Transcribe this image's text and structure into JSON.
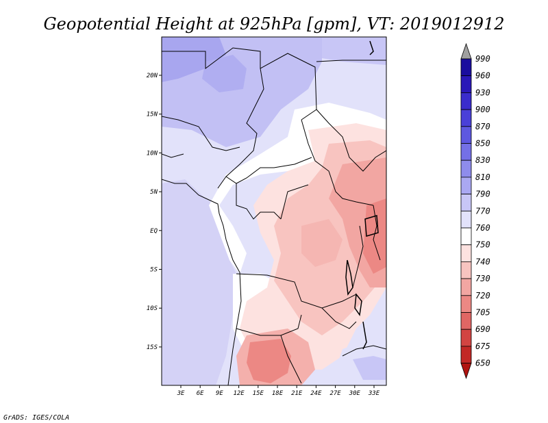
{
  "title": "Geopotential Height at 925hPa [gpm], VT: 2019012912",
  "credit": "GrADS: IGES/COLA",
  "map": {
    "lon_labels": [
      "3E",
      "6E",
      "9E",
      "12E",
      "15E",
      "18E",
      "21E",
      "24E",
      "27E",
      "30E",
      "33E"
    ],
    "lat_labels": [
      "20N",
      "15N",
      "10N",
      "5N",
      "EQ",
      "5S",
      "10S",
      "15S"
    ]
  },
  "colorbar": {
    "levels": [
      "990",
      "960",
      "930",
      "900",
      "870",
      "850",
      "830",
      "810",
      "790",
      "770",
      "760",
      "750",
      "740",
      "730",
      "720",
      "705",
      "690",
      "675",
      "650"
    ],
    "colors": [
      "#1a0d9e",
      "#2a18b8",
      "#3a2ccc",
      "#4a40d8",
      "#5e58e0",
      "#7470e6",
      "#8e8cec",
      "#aaa8f2",
      "#c8c6f6",
      "#e2e2fa",
      "#ffffff",
      "#fde2e0",
      "#f8c4c0",
      "#f2a6a2",
      "#ec8884",
      "#e06664",
      "#d24442",
      "#c22826",
      "#b01410"
    ],
    "top_arrow_color": "#a0a0a0"
  }
}
